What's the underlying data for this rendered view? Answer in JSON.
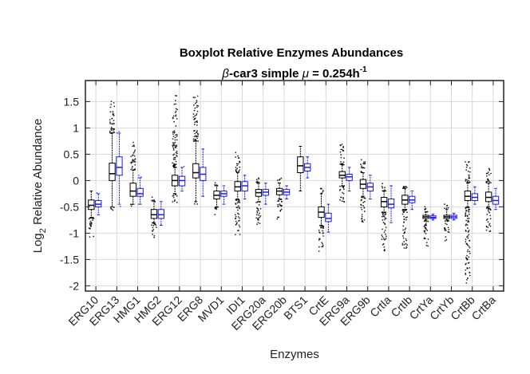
{
  "chart_data": {
    "type": "box",
    "title": "Boxplot Relative Enzymes Abundances",
    "subtitle_prefix": "-car3 simple ",
    "subtitle_greek_beta": "β",
    "subtitle_greek_mu": "μ",
    "subtitle_value": " = 0.254h",
    "subtitle_sup": "-1",
    "xlabel": "Enzymes",
    "ylabel_main": "Log",
    "ylabel_sub": "2",
    "ylabel_rest": " Relative Abundance",
    "ylim": [
      -2.1,
      1.9
    ],
    "yticks": [
      -2,
      -1.5,
      -1,
      -0.5,
      0,
      0.5,
      1,
      1.5
    ],
    "ytick_labels": [
      "-2",
      "-1.5",
      "-1",
      "-0.5",
      "0",
      "0.5",
      "1",
      "1.5"
    ],
    "grid": true,
    "categories": [
      "ERG10",
      "ERG13",
      "HMG1",
      "HMG2",
      "ERG12",
      "ERG8",
      "MVD1",
      "IDI1",
      "ERG20a",
      "ERG20b",
      "BTS1",
      "CrtE",
      "ERG9a",
      "ERG9b",
      "CrtIa",
      "CrtIb",
      "CrtYa",
      "CrtYb",
      "CrtBb",
      "CrtBa"
    ],
    "series": [
      {
        "color": "#000000",
        "boxes": [
          {
            "lw": -0.7,
            "q1": -0.55,
            "med": -0.47,
            "q3": -0.37,
            "hw": -0.2,
            "olo": -1.1,
            "ohi": -0.2
          },
          {
            "lw": -0.5,
            "q1": 0.0,
            "med": 0.13,
            "q3": 0.33,
            "hw": 0.9,
            "olo": -0.6,
            "ohi": 1.55
          },
          {
            "lw": -0.45,
            "q1": -0.3,
            "med": -0.2,
            "q3": -0.05,
            "hw": 0.2,
            "olo": -0.5,
            "ohi": 0.75
          },
          {
            "lw": -0.8,
            "q1": -0.72,
            "med": -0.65,
            "q3": -0.55,
            "hw": -0.4,
            "olo": -1.1,
            "ohi": -0.3
          },
          {
            "lw": -0.25,
            "q1": -0.1,
            "med": 0.0,
            "q3": 0.1,
            "hw": 0.25,
            "olo": -0.45,
            "ohi": 1.7
          },
          {
            "lw": -0.4,
            "q1": 0.05,
            "med": 0.15,
            "q3": 0.32,
            "hw": 0.75,
            "olo": -0.45,
            "ohi": 1.65
          },
          {
            "lw": -0.5,
            "q1": -0.35,
            "med": -0.28,
            "q3": -0.2,
            "hw": -0.1,
            "olo": -0.65,
            "ohi": 0.0
          },
          {
            "lw": -0.35,
            "q1": -0.2,
            "med": -0.12,
            "q3": -0.02,
            "hw": 0.15,
            "olo": -1.05,
            "ohi": 0.55
          },
          {
            "lw": -0.4,
            "q1": -0.3,
            "med": -0.23,
            "q3": -0.17,
            "hw": -0.05,
            "olo": -0.85,
            "ohi": 0.1
          },
          {
            "lw": -0.35,
            "q1": -0.27,
            "med": -0.2,
            "q3": -0.15,
            "hw": -0.05,
            "olo": -0.75,
            "ohi": 0.05
          },
          {
            "lw": -0.2,
            "q1": 0.15,
            "med": 0.28,
            "q3": 0.45,
            "hw": 0.65,
            "olo": -0.2,
            "ohi": 0.65
          },
          {
            "lw": -0.85,
            "q1": -0.7,
            "med": -0.6,
            "q3": -0.5,
            "hw": -0.25,
            "olo": -1.35,
            "ohi": -0.15
          },
          {
            "lw": -0.1,
            "q1": 0.05,
            "med": 0.1,
            "q3": 0.17,
            "hw": 0.3,
            "olo": -0.45,
            "ohi": 0.7
          },
          {
            "lw": -0.3,
            "q1": -0.15,
            "med": -0.07,
            "q3": 0.02,
            "hw": 0.15,
            "olo": -0.8,
            "ohi": 0.45
          },
          {
            "lw": -0.6,
            "q1": -0.5,
            "med": -0.4,
            "q3": -0.32,
            "hw": -0.2,
            "olo": -1.35,
            "ohi": -0.05
          },
          {
            "lw": -0.55,
            "q1": -0.45,
            "med": -0.37,
            "q3": -0.28,
            "hw": -0.15,
            "olo": -1.3,
            "ohi": 0.0
          },
          {
            "lw": -0.75,
            "q1": -0.72,
            "med": -0.69,
            "q3": -0.66,
            "hw": -0.6,
            "olo": -1.25,
            "ohi": -0.45
          },
          {
            "lw": -0.75,
            "q1": -0.72,
            "med": -0.69,
            "q3": -0.66,
            "hw": -0.55,
            "olo": -1.15,
            "ohi": -0.45
          },
          {
            "lw": -0.5,
            "q1": -0.38,
            "med": -0.3,
            "q3": -0.2,
            "hw": -0.05,
            "olo": -1.95,
            "ohi": 0.4
          },
          {
            "lw": -0.5,
            "q1": -0.4,
            "med": -0.32,
            "q3": -0.22,
            "hw": -0.05,
            "olo": -1.0,
            "ohi": 0.3
          }
        ]
      },
      {
        "color": "#1a1aff",
        "boxes": [
          {
            "lw": -0.65,
            "q1": -0.5,
            "med": -0.45,
            "q3": -0.38,
            "hw": -0.25,
            "olo": -0.65,
            "ohi": -0.2
          },
          {
            "lw": -0.45,
            "q1": 0.1,
            "med": 0.25,
            "q3": 0.45,
            "hw": 0.9,
            "olo": -0.5,
            "ohi": 1.0
          },
          {
            "lw": -0.45,
            "q1": -0.3,
            "med": -0.25,
            "q3": -0.15,
            "hw": 0.05,
            "olo": -0.5,
            "ohi": 0.2
          },
          {
            "lw": -0.85,
            "q1": -0.72,
            "med": -0.65,
            "q3": -0.55,
            "hw": -0.4,
            "olo": -0.85,
            "ohi": -0.4
          },
          {
            "lw": -0.2,
            "q1": -0.1,
            "med": 0.0,
            "q3": 0.08,
            "hw": 0.25,
            "olo": -0.2,
            "ohi": 0.3
          },
          {
            "lw": -0.3,
            "q1": 0.0,
            "med": 0.12,
            "q3": 0.25,
            "hw": 0.6,
            "olo": -0.3,
            "ohi": 0.6
          },
          {
            "lw": -0.45,
            "q1": -0.3,
            "med": -0.25,
            "q3": -0.2,
            "hw": -0.1,
            "olo": -0.45,
            "ohi": -0.1
          },
          {
            "lw": -0.35,
            "q1": -0.2,
            "med": -0.1,
            "q3": -0.02,
            "hw": 0.1,
            "olo": -0.35,
            "ohi": 0.1
          },
          {
            "lw": -0.45,
            "q1": -0.28,
            "med": -0.22,
            "q3": -0.17,
            "hw": -0.05,
            "olo": -0.45,
            "ohi": -0.05
          },
          {
            "lw": -0.35,
            "q1": -0.27,
            "med": -0.22,
            "q3": -0.17,
            "hw": -0.1,
            "olo": -0.35,
            "ohi": -0.1
          },
          {
            "lw": 0.05,
            "q1": 0.18,
            "med": 0.25,
            "q3": 0.32,
            "hw": 0.45,
            "olo": 0.05,
            "ohi": 0.45
          },
          {
            "lw": -0.98,
            "q1": -0.78,
            "med": -0.72,
            "q3": -0.62,
            "hw": -0.45,
            "olo": -0.98,
            "ohi": -0.45
          },
          {
            "lw": -0.2,
            "q1": 0.0,
            "med": 0.07,
            "q3": 0.12,
            "hw": 0.25,
            "olo": -0.2,
            "ohi": 0.25
          },
          {
            "lw": -0.35,
            "q1": -0.2,
            "med": -0.12,
            "q3": -0.05,
            "hw": 0.1,
            "olo": -0.35,
            "ohi": 0.1
          },
          {
            "lw": -0.8,
            "q1": -0.52,
            "med": -0.45,
            "q3": -0.35,
            "hw": -0.1,
            "olo": -0.8,
            "ohi": -0.1
          },
          {
            "lw": -0.55,
            "q1": -0.42,
            "med": -0.37,
            "q3": -0.3,
            "hw": -0.2,
            "olo": -0.55,
            "ohi": -0.2
          },
          {
            "lw": -0.75,
            "q1": -0.72,
            "med": -0.7,
            "q3": -0.67,
            "hw": -0.64,
            "olo": -0.75,
            "ohi": -0.64
          },
          {
            "lw": -0.75,
            "q1": -0.72,
            "med": -0.69,
            "q3": -0.66,
            "hw": -0.62,
            "olo": -0.75,
            "ohi": -0.62
          },
          {
            "lw": -0.45,
            "q1": -0.38,
            "med": -0.32,
            "q3": -0.25,
            "hw": -0.12,
            "olo": -0.45,
            "ohi": -0.12
          },
          {
            "lw": -0.55,
            "q1": -0.45,
            "med": -0.38,
            "q3": -0.3,
            "hw": -0.15,
            "olo": -0.55,
            "ohi": -0.15
          }
        ]
      }
    ]
  }
}
